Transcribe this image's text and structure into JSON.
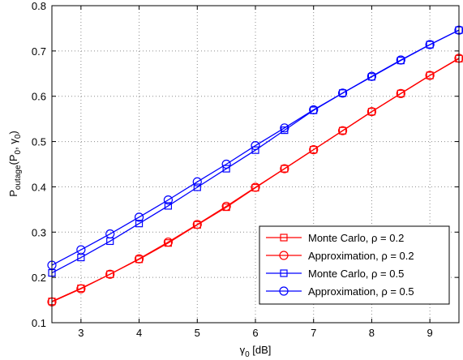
{
  "chart_data": {
    "type": "line",
    "title": "",
    "xlabel": {
      "main": "γ",
      "sub": "0",
      "unit": " [dB]"
    },
    "ylabel": {
      "p": "P",
      "sub1": "outage",
      "open": "(P",
      "sub2": "0",
      "comma": ", γ",
      "sub3": "0",
      "close": ")"
    },
    "xlim": [
      2.5,
      9.5
    ],
    "ylim": [
      0.1,
      0.8
    ],
    "xticks": [
      "3",
      "4",
      "5",
      "6",
      "7",
      "8",
      "9"
    ],
    "yticks": [
      "0.1",
      "0.2",
      "0.3",
      "0.4",
      "0.5",
      "0.6",
      "0.7",
      "0.8"
    ],
    "grid": true,
    "legend_position": "bottom-right",
    "x": [
      2.5,
      3,
      3.5,
      4,
      4.5,
      5,
      5.5,
      6,
      6.5,
      7,
      7.5,
      8,
      8.5,
      9,
      9.5
    ],
    "series": [
      {
        "name": "Monte Carlo, ρ = 0.2",
        "color": "#ff0000",
        "marker": "square",
        "values": [
          0.147,
          0.176,
          0.207,
          0.24,
          0.276,
          0.316,
          0.355,
          0.398,
          0.44,
          0.482,
          0.524,
          0.566,
          0.606,
          0.646,
          0.683
        ]
      },
      {
        "name": "Approximation, ρ = 0.2",
        "color": "#ff0000",
        "marker": "circle",
        "values": [
          0.146,
          0.175,
          0.207,
          0.241,
          0.278,
          0.317,
          0.357,
          0.399,
          0.44,
          0.482,
          0.524,
          0.566,
          0.606,
          0.646,
          0.684
        ]
      },
      {
        "name": "Monte Carlo, ρ = 0.5",
        "color": "#0000ff",
        "marker": "square",
        "values": [
          0.21,
          0.244,
          0.28,
          0.319,
          0.358,
          0.399,
          0.44,
          0.481,
          0.525,
          0.569,
          0.607,
          0.643,
          0.679,
          0.714,
          0.746
        ]
      },
      {
        "name": "Approximation, ρ = 0.5",
        "color": "#0000ff",
        "marker": "circle",
        "values": [
          0.227,
          0.261,
          0.296,
          0.333,
          0.371,
          0.411,
          0.45,
          0.491,
          0.53,
          0.57,
          0.607,
          0.644,
          0.68,
          0.714,
          0.746
        ]
      }
    ]
  }
}
